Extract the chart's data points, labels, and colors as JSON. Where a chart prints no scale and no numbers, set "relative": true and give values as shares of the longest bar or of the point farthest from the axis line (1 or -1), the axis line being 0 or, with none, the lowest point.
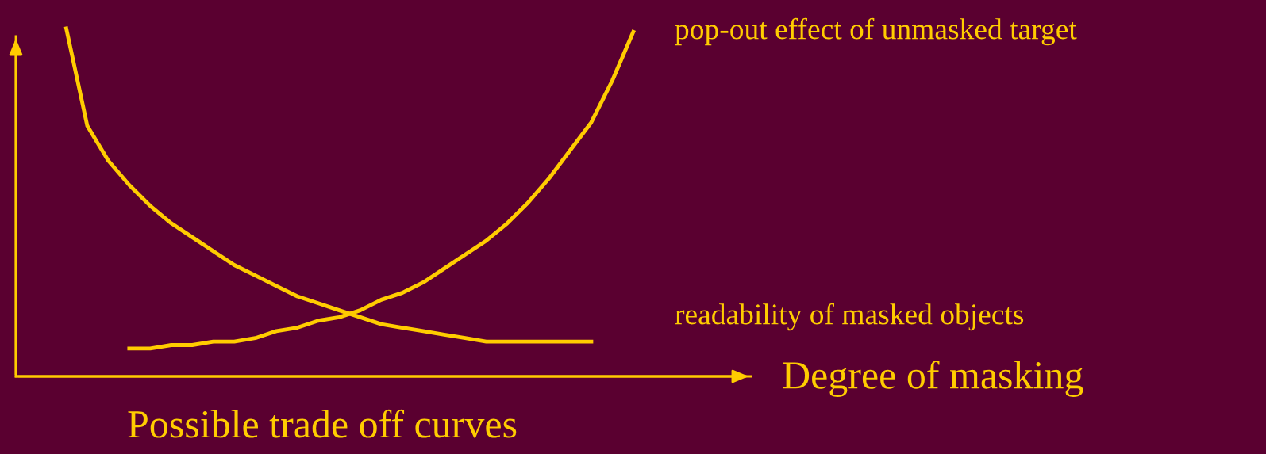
{
  "chart_data": {
    "type": "line",
    "relative": true,
    "xlabel": "Degree of masking",
    "annotations": [
      "Possible trade off curves"
    ],
    "categories": [
      null,
      null,
      null,
      null,
      null,
      null,
      null,
      null,
      null,
      null,
      null,
      null,
      null,
      null,
      null,
      null,
      null,
      null,
      null,
      null,
      null,
      null,
      null,
      null,
      null,
      null,
      null,
      null,
      null,
      null,
      null,
      null,
      null,
      null,
      null
    ],
    "series": [
      {
        "name": "readability of masked objects",
        "color": "#ffcc00",
        "values": [
          null,
          null,
          1.0,
          0.72,
          0.62,
          0.55,
          0.49,
          0.44,
          0.4,
          0.36,
          0.32,
          0.29,
          0.26,
          0.23,
          0.21,
          0.19,
          0.17,
          0.15,
          0.14,
          0.13,
          0.12,
          0.11,
          0.1,
          0.1,
          0.1,
          0.1,
          0.1,
          0.1,
          null,
          null,
          null,
          null,
          null,
          null,
          null
        ]
      },
      {
        "name": "pop-out effect of unmasked target",
        "color": "#ffcc00",
        "values": [
          null,
          null,
          null,
          null,
          null,
          0.08,
          0.08,
          0.09,
          0.09,
          0.1,
          0.1,
          0.11,
          0.13,
          0.14,
          0.16,
          0.17,
          0.19,
          0.22,
          0.24,
          0.27,
          0.31,
          0.35,
          0.39,
          0.44,
          0.5,
          0.57,
          0.65,
          0.73,
          0.85,
          0.99,
          null,
          null,
          null,
          null,
          null
        ]
      }
    ],
    "marker": "none",
    "line_style": "solid",
    "legend": false
  }
}
